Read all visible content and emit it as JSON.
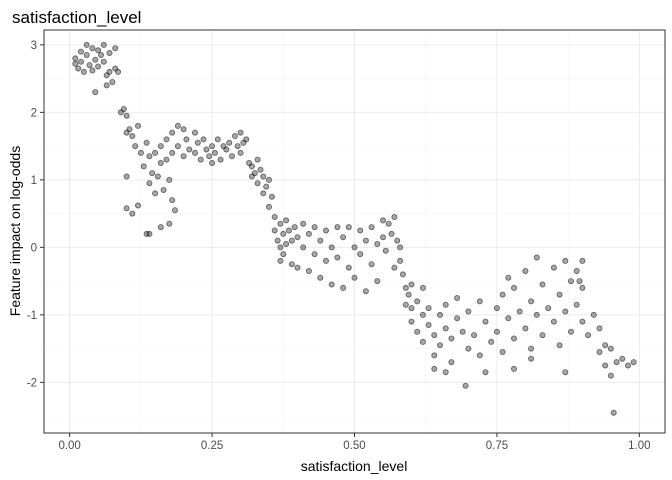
{
  "chart_data": {
    "type": "scatter",
    "title": "satisfaction_level",
    "xlabel": "satisfaction_level",
    "ylabel": "Feature impact on log-odds",
    "xlim": [
      -0.045,
      1.045
    ],
    "ylim": [
      -2.75,
      3.22
    ],
    "x_ticks": [
      0.0,
      0.25,
      0.5,
      0.75,
      1.0
    ],
    "x_tick_labels": [
      "0.00",
      "0.25",
      "0.50",
      "0.75",
      "1.00"
    ],
    "y_ticks": [
      -2,
      -1,
      0,
      1,
      2,
      3
    ],
    "y_tick_labels": [
      "-2",
      "-1",
      "0",
      "1",
      "2",
      "3"
    ],
    "grid": true,
    "legend": "none",
    "point_color": "#000000",
    "point_alpha": 0.35,
    "series": [
      {
        "points": [
          [
            0.01,
            2.72
          ],
          [
            0.01,
            2.8
          ],
          [
            0.015,
            2.65
          ],
          [
            0.02,
            2.75
          ],
          [
            0.02,
            2.9
          ],
          [
            0.025,
            2.6
          ],
          [
            0.03,
            3.0
          ],
          [
            0.03,
            2.85
          ],
          [
            0.035,
            2.7
          ],
          [
            0.04,
            2.95
          ],
          [
            0.04,
            2.62
          ],
          [
            0.045,
            2.78
          ],
          [
            0.05,
            2.92
          ],
          [
            0.05,
            2.68
          ],
          [
            0.055,
            2.85
          ],
          [
            0.06,
            3.0
          ],
          [
            0.06,
            2.75
          ],
          [
            0.065,
            2.55
          ],
          [
            0.07,
            2.88
          ],
          [
            0.07,
            2.6
          ],
          [
            0.075,
            2.45
          ],
          [
            0.08,
            2.95
          ],
          [
            0.08,
            2.65
          ],
          [
            0.085,
            2.6
          ],
          [
            0.045,
            2.3
          ],
          [
            0.065,
            2.4
          ],
          [
            0.09,
            2.0
          ],
          [
            0.095,
            2.05
          ],
          [
            0.1,
            1.95
          ],
          [
            0.1,
            1.7
          ],
          [
            0.105,
            1.75
          ],
          [
            0.11,
            1.65
          ],
          [
            0.115,
            1.5
          ],
          [
            0.12,
            1.8
          ],
          [
            0.125,
            1.4
          ],
          [
            0.13,
            1.2
          ],
          [
            0.135,
            1.55
          ],
          [
            0.14,
            1.35
          ],
          [
            0.14,
            0.95
          ],
          [
            0.145,
            1.1
          ],
          [
            0.15,
            1.4
          ],
          [
            0.15,
            0.8
          ],
          [
            0.155,
            1.05
          ],
          [
            0.16,
            1.5
          ],
          [
            0.16,
            1.25
          ],
          [
            0.165,
            0.85
          ],
          [
            0.17,
            1.6
          ],
          [
            0.17,
            1.3
          ],
          [
            0.175,
            1.0
          ],
          [
            0.18,
            1.7
          ],
          [
            0.18,
            1.4
          ],
          [
            0.185,
            0.55
          ],
          [
            0.19,
            1.8
          ],
          [
            0.19,
            1.5
          ],
          [
            0.2,
            1.75
          ],
          [
            0.2,
            1.35
          ],
          [
            0.205,
            1.6
          ],
          [
            0.21,
            1.45
          ],
          [
            0.1,
            1.05
          ],
          [
            0.1,
            0.58
          ],
          [
            0.11,
            0.5
          ],
          [
            0.12,
            0.62
          ],
          [
            0.135,
            0.2
          ],
          [
            0.14,
            0.2
          ],
          [
            0.16,
            0.3
          ],
          [
            0.175,
            0.35
          ],
          [
            0.18,
            0.7
          ],
          [
            0.22,
            1.7
          ],
          [
            0.22,
            1.4
          ],
          [
            0.225,
            1.55
          ],
          [
            0.23,
            1.3
          ],
          [
            0.235,
            1.6
          ],
          [
            0.24,
            1.45
          ],
          [
            0.245,
            1.35
          ],
          [
            0.25,
            1.5
          ],
          [
            0.25,
            1.25
          ],
          [
            0.255,
            1.4
          ],
          [
            0.26,
            1.6
          ],
          [
            0.265,
            1.3
          ],
          [
            0.27,
            1.5
          ],
          [
            0.275,
            1.45
          ],
          [
            0.28,
            1.55
          ],
          [
            0.285,
            1.35
          ],
          [
            0.29,
            1.65
          ],
          [
            0.295,
            1.5
          ],
          [
            0.3,
            1.7
          ],
          [
            0.3,
            1.4
          ],
          [
            0.305,
            1.55
          ],
          [
            0.31,
            1.6
          ],
          [
            0.315,
            1.25
          ],
          [
            0.32,
            1.2
          ],
          [
            0.32,
            1.05
          ],
          [
            0.325,
            1.1
          ],
          [
            0.33,
            1.3
          ],
          [
            0.33,
            0.95
          ],
          [
            0.335,
            1.15
          ],
          [
            0.34,
            1.05
          ],
          [
            0.34,
            0.8
          ],
          [
            0.345,
            0.9
          ],
          [
            0.35,
            1.0
          ],
          [
            0.35,
            0.6
          ],
          [
            0.355,
            0.75
          ],
          [
            0.36,
            0.45
          ],
          [
            0.36,
            0.25
          ],
          [
            0.365,
            0.1
          ],
          [
            0.37,
            0.35
          ],
          [
            0.37,
            0.0
          ],
          [
            0.375,
            0.2
          ],
          [
            0.37,
            -0.2
          ],
          [
            0.375,
            -0.1
          ],
          [
            0.38,
            0.05
          ],
          [
            0.38,
            0.4
          ],
          [
            0.385,
            0.25
          ],
          [
            0.39,
            0.1
          ],
          [
            0.39,
            -0.25
          ],
          [
            0.395,
            0.3
          ],
          [
            0.4,
            0.15
          ],
          [
            0.4,
            -0.3
          ],
          [
            0.41,
            0.35
          ],
          [
            0.41,
            0.0
          ],
          [
            0.42,
            0.2
          ],
          [
            0.42,
            -0.35
          ],
          [
            0.43,
            0.3
          ],
          [
            0.43,
            -0.1
          ],
          [
            0.44,
            0.1
          ],
          [
            0.44,
            -0.45
          ],
          [
            0.45,
            0.25
          ],
          [
            0.45,
            -0.2
          ],
          [
            0.46,
            0.0
          ],
          [
            0.46,
            -0.55
          ],
          [
            0.47,
            0.3
          ],
          [
            0.47,
            -0.15
          ],
          [
            0.48,
            0.15
          ],
          [
            0.48,
            -0.6
          ],
          [
            0.49,
            0.3
          ],
          [
            0.49,
            -0.3
          ],
          [
            0.5,
            0.0
          ],
          [
            0.5,
            -0.45
          ],
          [
            0.51,
            0.25
          ],
          [
            0.51,
            -0.1
          ],
          [
            0.52,
            0.1
          ],
          [
            0.52,
            -0.65
          ],
          [
            0.53,
            0.3
          ],
          [
            0.53,
            -0.25
          ],
          [
            0.54,
            0.05
          ],
          [
            0.54,
            -0.5
          ],
          [
            0.55,
            0.4
          ],
          [
            0.55,
            0.15
          ],
          [
            0.555,
            -0.05
          ],
          [
            0.56,
            0.35
          ],
          [
            0.565,
            0.2
          ],
          [
            0.57,
            0.45
          ],
          [
            0.57,
            -0.3
          ],
          [
            0.575,
            0.1
          ],
          [
            0.58,
            0.0
          ],
          [
            0.58,
            -0.2
          ],
          [
            0.585,
            -0.4
          ],
          [
            0.59,
            -0.6
          ],
          [
            0.59,
            -0.85
          ],
          [
            0.595,
            -0.7
          ],
          [
            0.6,
            -0.9
          ],
          [
            0.6,
            -1.1
          ],
          [
            0.61,
            -0.8
          ],
          [
            0.61,
            -1.25
          ],
          [
            0.62,
            -1.0
          ],
          [
            0.62,
            -1.4
          ],
          [
            0.63,
            -1.15
          ],
          [
            0.63,
            -0.9
          ],
          [
            0.64,
            -1.3
          ],
          [
            0.64,
            -1.6
          ],
          [
            0.65,
            -1.0
          ],
          [
            0.65,
            -1.45
          ],
          [
            0.66,
            -1.2
          ],
          [
            0.66,
            -0.85
          ],
          [
            0.67,
            -1.35
          ],
          [
            0.67,
            -1.7
          ],
          [
            0.68,
            -1.05
          ],
          [
            0.68,
            -0.75
          ],
          [
            0.69,
            -1.25
          ],
          [
            0.7,
            -1.5
          ],
          [
            0.7,
            -0.95
          ],
          [
            0.71,
            -1.3
          ],
          [
            0.72,
            -0.8
          ],
          [
            0.72,
            -1.6
          ],
          [
            0.73,
            -1.1
          ],
          [
            0.74,
            -1.4
          ],
          [
            0.75,
            -0.9
          ],
          [
            0.75,
            -1.25
          ],
          [
            0.76,
            -1.55
          ],
          [
            0.76,
            -0.7
          ],
          [
            0.77,
            -1.05
          ],
          [
            0.78,
            -1.35
          ],
          [
            0.78,
            -0.6
          ],
          [
            0.79,
            -0.95
          ],
          [
            0.8,
            -1.2
          ],
          [
            0.8,
            -0.35
          ],
          [
            0.81,
            -0.8
          ],
          [
            0.81,
            -1.5
          ],
          [
            0.82,
            -0.15
          ],
          [
            0.82,
            -1.0
          ],
          [
            0.83,
            -0.55
          ],
          [
            0.83,
            -1.3
          ],
          [
            0.84,
            -0.9
          ],
          [
            0.85,
            -0.3
          ],
          [
            0.85,
            -1.1
          ],
          [
            0.86,
            -0.7
          ],
          [
            0.86,
            -1.45
          ],
          [
            0.87,
            -0.2
          ],
          [
            0.87,
            -0.95
          ],
          [
            0.88,
            -0.5
          ],
          [
            0.88,
            -1.25
          ],
          [
            0.89,
            -0.85
          ],
          [
            0.9,
            -1.1
          ],
          [
            0.9,
            -0.6
          ],
          [
            0.91,
            -1.3
          ],
          [
            0.92,
            -1.0
          ],
          [
            0.93,
            -1.55
          ],
          [
            0.93,
            -1.2
          ],
          [
            0.94,
            -1.75
          ],
          [
            0.94,
            -1.45
          ],
          [
            0.95,
            -1.9
          ],
          [
            0.95,
            -1.5
          ],
          [
            0.955,
            -2.45
          ],
          [
            0.96,
            -1.7
          ],
          [
            0.97,
            -1.65
          ],
          [
            0.98,
            -1.75
          ],
          [
            0.99,
            -1.7
          ],
          [
            0.695,
            -2.05
          ],
          [
            0.64,
            -1.8
          ],
          [
            0.66,
            -1.85
          ],
          [
            0.73,
            -1.85
          ],
          [
            0.78,
            -1.8
          ],
          [
            0.81,
            -1.65
          ],
          [
            0.87,
            -1.85
          ],
          [
            0.6,
            -0.55
          ],
          [
            0.62,
            -0.6
          ],
          [
            0.77,
            -0.45
          ],
          [
            0.89,
            -0.35
          ],
          [
            0.9,
            -0.2
          ],
          [
            0.895,
            -0.5
          ]
        ]
      }
    ]
  }
}
